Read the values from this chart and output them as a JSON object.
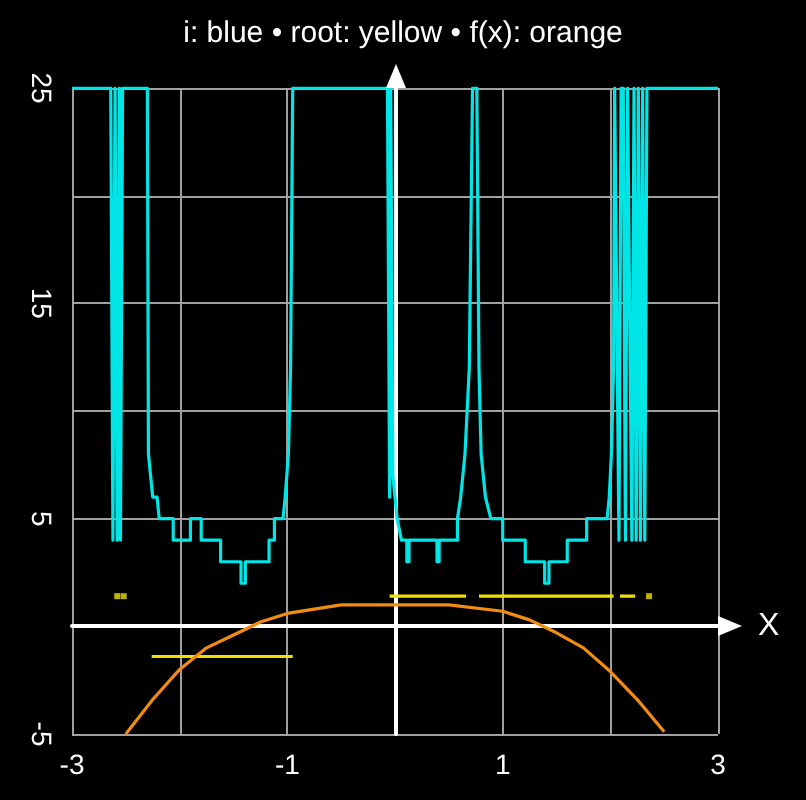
{
  "chart_data": {
    "type": "line",
    "title": "i: blue • root: yellow • f(x): orange",
    "xlabel": "X",
    "xlim": [
      -3,
      3
    ],
    "ylim": [
      -5,
      25
    ],
    "xticks": [
      -3,
      {
        "value": -2,
        "label": null
      },
      -1,
      {
        "value": 0,
        "label": null
      },
      1,
      {
        "value": 2,
        "label": null
      },
      3
    ],
    "yticks": [
      -5,
      {
        "value": 0,
        "label": null
      },
      5,
      {
        "value": 10,
        "label": null
      },
      15,
      {
        "value": 20,
        "label": null
      },
      25
    ],
    "grid": true,
    "marker": "none",
    "line_style": "solid",
    "series": [
      {
        "color": "#00e5e5",
        "x": [
          -3,
          -2.64,
          -2.62,
          -2.6,
          -2.58,
          -2.56,
          -2.55,
          -2.53,
          -2.3,
          -2.29,
          -2.25,
          -2.21,
          -2.19,
          -2.06,
          -2.06,
          -1.9,
          -1.9,
          -1.8,
          -1.8,
          -1.62,
          -1.62,
          -1.43,
          -1.43,
          -1.39,
          -1.39,
          -1.17,
          -1.17,
          -1.12,
          -1.12,
          -1.04,
          -1.02,
          -0.99,
          -0.97,
          -0.95,
          -0.07,
          -0.05,
          -0.04,
          -0.02,
          0.02,
          0.06,
          0.11,
          0.11,
          0.13,
          0.13,
          0.39,
          0.39,
          0.41,
          0.41,
          0.58,
          0.58,
          0.61,
          0.65,
          0.69,
          0.72,
          0.76,
          0.78,
          0.8,
          0.84,
          0.89,
          1.0,
          1.0,
          1.21,
          1.21,
          1.39,
          1.39,
          1.43,
          1.43,
          1.6,
          1.6,
          1.78,
          1.78,
          1.97,
          1.99,
          2.01,
          2.03,
          2.04,
          2.08,
          2.1,
          2.12,
          2.14,
          2.16,
          2.2,
          2.22,
          2.24,
          2.26,
          2.28,
          2.3,
          2.32,
          2.34,
          3
        ],
        "values": [
          25,
          25,
          4,
          25,
          4,
          25,
          4,
          25,
          25,
          8,
          6,
          6,
          5,
          5,
          4,
          4,
          5,
          5,
          4,
          4,
          3,
          3,
          2,
          2,
          3,
          3,
          4,
          4,
          5,
          5,
          6,
          8,
          12,
          25,
          25,
          6,
          25,
          7,
          5,
          4,
          4,
          3,
          3,
          4,
          4,
          3,
          3,
          4,
          4,
          5,
          6,
          8,
          12,
          25,
          25,
          12,
          8,
          6,
          5,
          5,
          4,
          4,
          3,
          3,
          2,
          2,
          3,
          3,
          4,
          4,
          5,
          5,
          6,
          8,
          12,
          25,
          4,
          25,
          25,
          4,
          25,
          4,
          25,
          4,
          25,
          4,
          25,
          4,
          25,
          25
        ]
      },
      {
        "color": "#f0e000",
        "x": [
          -2.26,
          -0.95,
          -0.9,
          -0.05,
          0.66,
          0.7,
          0.78,
          2.03,
          2.06,
          2.09,
          2.23
        ],
        "values": [
          -1.4,
          -1.4,
          null,
          1.4,
          1.4,
          null,
          1.4,
          1.4,
          null,
          1.4,
          1.4
        ]
      },
      {
        "type": "scatter",
        "marker": "square",
        "color": "#f0e000",
        "x": [
          -2.58,
          -2.52,
          2.36
        ],
        "values": [
          1.4,
          1.4,
          1.4
        ]
      },
      {
        "color": "#f08c10",
        "x": [
          -2.5,
          -2.25,
          -2,
          -1.75,
          -1.5,
          -1.25,
          -1,
          -0.5,
          0,
          0.5,
          1,
          1.25,
          1.5,
          1.75,
          2,
          2.25,
          2.5
        ],
        "values": [
          -5,
          -3.4,
          -2,
          -1,
          -0.4,
          0.2,
          0.6,
          1,
          1,
          1,
          0.7,
          0.3,
          -0.3,
          -1,
          -2.1,
          -3.4,
          -4.9
        ]
      }
    ]
  }
}
